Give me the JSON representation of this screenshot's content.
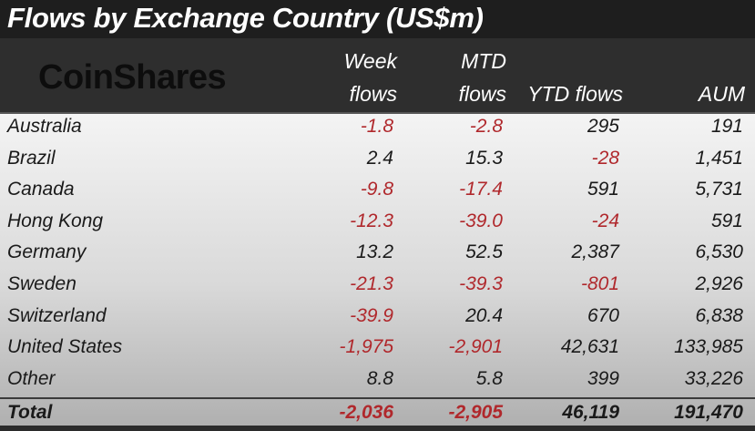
{
  "title": "Flows by Exchange Country (US$m)",
  "logo": "CoinShares",
  "chart_data": {
    "type": "table",
    "title": "Flows by Exchange Country (US$m)",
    "columns": [
      {
        "line1": "Week",
        "line2": "flows"
      },
      {
        "line1": "MTD",
        "line2": "flows"
      },
      {
        "line1": "",
        "line2": "YTD flows"
      },
      {
        "line1": "",
        "line2": "AUM"
      }
    ],
    "rows": [
      {
        "country": "Australia",
        "cells": [
          "-1.8",
          "-2.8",
          "295",
          "191"
        ]
      },
      {
        "country": "Brazil",
        "cells": [
          "2.4",
          "15.3",
          "-28",
          "1,451"
        ]
      },
      {
        "country": "Canada",
        "cells": [
          "-9.8",
          "-17.4",
          "591",
          "5,731"
        ]
      },
      {
        "country": "Hong Kong",
        "cells": [
          "-12.3",
          "-39.0",
          "-24",
          "591"
        ]
      },
      {
        "country": "Germany",
        "cells": [
          "13.2",
          "52.5",
          "2,387",
          "6,530"
        ]
      },
      {
        "country": "Sweden",
        "cells": [
          "-21.3",
          "-39.3",
          "-801",
          "2,926"
        ]
      },
      {
        "country": "Switzerland",
        "cells": [
          "-39.9",
          "20.4",
          "670",
          "6,838"
        ]
      },
      {
        "country": "United States",
        "cells": [
          "-1,975",
          "-2,901",
          "42,631",
          "133,985"
        ]
      },
      {
        "country": "Other",
        "cells": [
          "8.8",
          "5.8",
          "399",
          "33,226"
        ]
      }
    ],
    "total": {
      "label": "Total",
      "cells": [
        "-2,036",
        "-2,905",
        "46,119",
        "191,470"
      ]
    },
    "negative_color": "#b0282c"
  }
}
